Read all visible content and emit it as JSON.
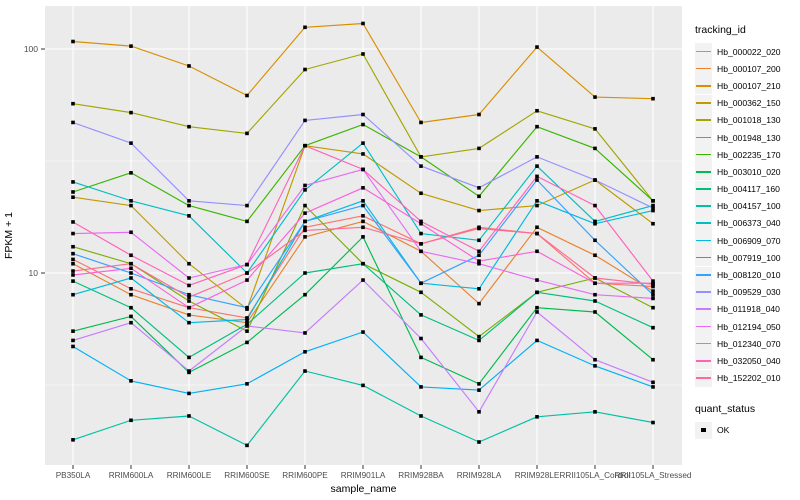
{
  "figure": {
    "xlabel": "sample_name",
    "ylabel": "FPKM + 1",
    "colors": {
      "panel_bg": "#EBEBEB",
      "grid": "#FFFFFF",
      "tick_text": "#4D4D4D",
      "tick_mark": "#333333",
      "axis_title": "#000000",
      "legend_key_bg": "#F2F2F2",
      "point": "#000000"
    }
  },
  "legend": {
    "tracking_title": "tracking_id",
    "quant_title": "quant_status",
    "quant_value": "OK",
    "quant_marker": "filled-black-square"
  },
  "chart_data": {
    "type": "line",
    "title": "",
    "xlabel": "sample_name",
    "ylabel": "FPKM + 1",
    "y_scale": "log10",
    "ylim": [
      1.5,
      160
    ],
    "y_ticks": [
      {
        "label": "100",
        "value": 100
      },
      {
        "label": "10",
        "value": 10
      }
    ],
    "minor_gridlines": [
      31.62,
      3.162
    ],
    "grid": true,
    "legend_position": "right",
    "point_marker": "filled-square",
    "categories": [
      "PB350LA",
      "RRIM600LA",
      "RRIM600LE",
      "RRIM600SE",
      "RRIM600PE",
      "RRIM901LA",
      "RRIM928BA",
      "RRIM928LA",
      "RRIM928LE",
      "RRII105LA_Control",
      "RRII105LA_Stressed"
    ],
    "series": [
      {
        "name": "Hb_000022_020",
        "color": "#F8766D",
        "values": [
          11.5,
          8.5,
          7.0,
          6.3,
          16,
          18,
          13.5,
          16,
          15,
          9,
          8.7
        ]
      },
      {
        "name": "Hb_000107_200",
        "color": "#EA8331",
        "values": [
          11.0,
          8.0,
          6.5,
          6.0,
          14.5,
          17,
          12.5,
          7.3,
          16,
          12,
          8.3
        ]
      },
      {
        "name": "Hb_000107_210",
        "color": "#D89000",
        "values": [
          108,
          103,
          84,
          62,
          125,
          130,
          47,
          51,
          102,
          61,
          60
        ]
      },
      {
        "name": "Hb_000362_150",
        "color": "#C09B00",
        "values": [
          21.8,
          20,
          11,
          6.9,
          37,
          34,
          22.7,
          19,
          20,
          26,
          16.6
        ]
      },
      {
        "name": "Hb_001018_130",
        "color": "#A3A500",
        "values": [
          57,
          52,
          45,
          42,
          81,
          95,
          33,
          36,
          53,
          44,
          21
        ]
      },
      {
        "name": "Hb_001948_130",
        "color": "#7CAE00",
        "values": [
          13.1,
          11,
          7.5,
          5.5,
          20,
          11,
          8.2,
          5.2,
          8.2,
          9.5,
          7.0
        ]
      },
      {
        "name": "Hb_002235_170",
        "color": "#39B600",
        "values": [
          23,
          28,
          20,
          17,
          37,
          46,
          33,
          22,
          45,
          36,
          21
        ]
      },
      {
        "name": "Hb_003010_020",
        "color": "#00BB4E",
        "values": [
          5.5,
          6.4,
          3.6,
          4.9,
          8.0,
          14.5,
          4.2,
          3.2,
          7.0,
          6.7,
          4.1
        ]
      },
      {
        "name": "Hb_004117_160",
        "color": "#00BF7D",
        "values": [
          9.2,
          7.0,
          4.2,
          5.9,
          10,
          11,
          6.5,
          5.0,
          8.2,
          7.5,
          5.7
        ]
      },
      {
        "name": "Hb_004157_100",
        "color": "#00C1A3",
        "values": [
          1.8,
          2.2,
          2.3,
          1.7,
          3.65,
          3.15,
          2.3,
          1.76,
          2.28,
          2.4,
          2.15
        ]
      },
      {
        "name": "Hb_006373_040",
        "color": "#00BFC4",
        "values": [
          25.5,
          21,
          18,
          10,
          23.5,
          38,
          15,
          14,
          30,
          17,
          20
        ]
      },
      {
        "name": "Hb_006909_070",
        "color": "#00BAE0",
        "values": [
          8.0,
          9.5,
          6.0,
          6.2,
          17,
          21,
          9.0,
          8.5,
          21,
          16.6,
          19
        ]
      },
      {
        "name": "Hb_007919_100",
        "color": "#00B0F6",
        "values": [
          4.7,
          3.3,
          2.9,
          3.2,
          4.45,
          5.45,
          3.1,
          3.0,
          5.0,
          3.85,
          3.1
        ]
      },
      {
        "name": "Hb_008120_010",
        "color": "#35A2FF",
        "values": [
          12.2,
          10,
          8.0,
          7.0,
          17,
          20,
          9.0,
          12,
          26,
          14,
          8.0
        ]
      },
      {
        "name": "Hb_009529_030",
        "color": "#9590FF",
        "values": [
          47,
          38,
          21,
          20,
          48,
          51,
          30,
          24,
          33,
          26,
          19.5
        ]
      },
      {
        "name": "Hb_011918_040",
        "color": "#C77CFF",
        "values": [
          5.0,
          6.0,
          3.65,
          5.8,
          5.4,
          9.3,
          5.1,
          2.4,
          6.7,
          4.1,
          3.25
        ]
      },
      {
        "name": "Hb_012194_050",
        "color": "#E76BF3",
        "values": [
          15.0,
          15.2,
          9.5,
          10.9,
          24.6,
          29,
          12.5,
          11,
          9.3,
          8.0,
          7.7
        ]
      },
      {
        "name": "Hb_012340_070",
        "color": "#FA62DB",
        "values": [
          9.8,
          10.5,
          7.0,
          9.3,
          18.5,
          24,
          16.6,
          11.3,
          12.5,
          9.0,
          9.0
        ]
      },
      {
        "name": "Hb_032050_040",
        "color": "#FF62BC",
        "values": [
          16.9,
          12,
          8.8,
          10.9,
          37,
          29,
          17,
          12.5,
          27,
          20,
          9.2
        ]
      },
      {
        "name": "Hb_152202_010",
        "color": "#FF6A98",
        "values": [
          10.2,
          11,
          7.8,
          10.0,
          15.5,
          16,
          13.5,
          15.8,
          15,
          9.5,
          8.9
        ]
      }
    ]
  }
}
